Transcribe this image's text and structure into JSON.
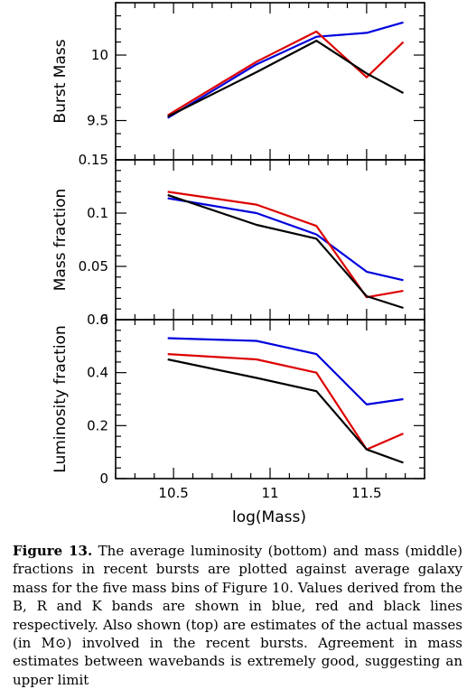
{
  "chart_data": {
    "type": "line",
    "x": [
      10.47,
      10.93,
      11.24,
      11.5,
      11.69
    ],
    "xlabel": "log(Mass)",
    "xlim": [
      10.2,
      11.8
    ],
    "xticks": [
      "10.5",
      "11",
      "11.5"
    ],
    "series_colors": {
      "B": "#0000dd",
      "R": "#dd0000",
      "K": "#000000"
    },
    "panels": [
      {
        "id": "top",
        "ylabel": "Burst Mass",
        "ylim": [
          9.2,
          10.4
        ],
        "yticks": [
          "9.5",
          "10"
        ],
        "series": [
          {
            "band": "B",
            "values": [
              9.52,
              9.93,
              10.14,
              10.17,
              10.25
            ]
          },
          {
            "band": "R",
            "values": [
              9.54,
              9.95,
              10.18,
              9.83,
              10.1
            ]
          },
          {
            "band": "K",
            "values": [
              9.53,
              9.87,
              10.11,
              9.86,
              9.71
            ]
          }
        ]
      },
      {
        "id": "middle",
        "ylabel": "Mass fraction",
        "ylim": [
          0,
          0.15
        ],
        "yticks": [
          "0.15",
          "0.1",
          "0.05",
          "0"
        ],
        "series": [
          {
            "band": "B",
            "values": [
              0.114,
              0.1,
              0.08,
              0.045,
              0.037
            ]
          },
          {
            "band": "R",
            "values": [
              0.12,
              0.108,
              0.088,
              0.021,
              0.027
            ]
          },
          {
            "band": "K",
            "values": [
              0.117,
              0.089,
              0.076,
              0.022,
              0.011
            ]
          }
        ]
      },
      {
        "id": "bottom",
        "ylabel": "Luminosity fraction",
        "ylim": [
          0,
          0.6
        ],
        "yticks": [
          "0.6",
          "0.4",
          "0.2",
          "0"
        ],
        "series": [
          {
            "band": "B",
            "values": [
              0.53,
              0.52,
              0.47,
              0.28,
              0.3
            ]
          },
          {
            "band": "R",
            "values": [
              0.47,
              0.45,
              0.4,
              0.11,
              0.17
            ]
          },
          {
            "band": "K",
            "values": [
              0.45,
              0.38,
              0.33,
              0.11,
              0.06
            ]
          }
        ]
      }
    ]
  },
  "caption": {
    "label": "Figure 13.",
    "text": " The average luminosity (bottom) and mass (middle) fractions in recent bursts are plotted against average galaxy mass for the five mass bins of Figure 10. Values derived from the B, R and K bands are shown in blue, red and black lines respectively. Also shown (top) are estimates of the actual masses (in M⊙) involved in the recent bursts. Agreement in mass estimates between wavebands is extremely good, suggesting an upper limit"
  }
}
